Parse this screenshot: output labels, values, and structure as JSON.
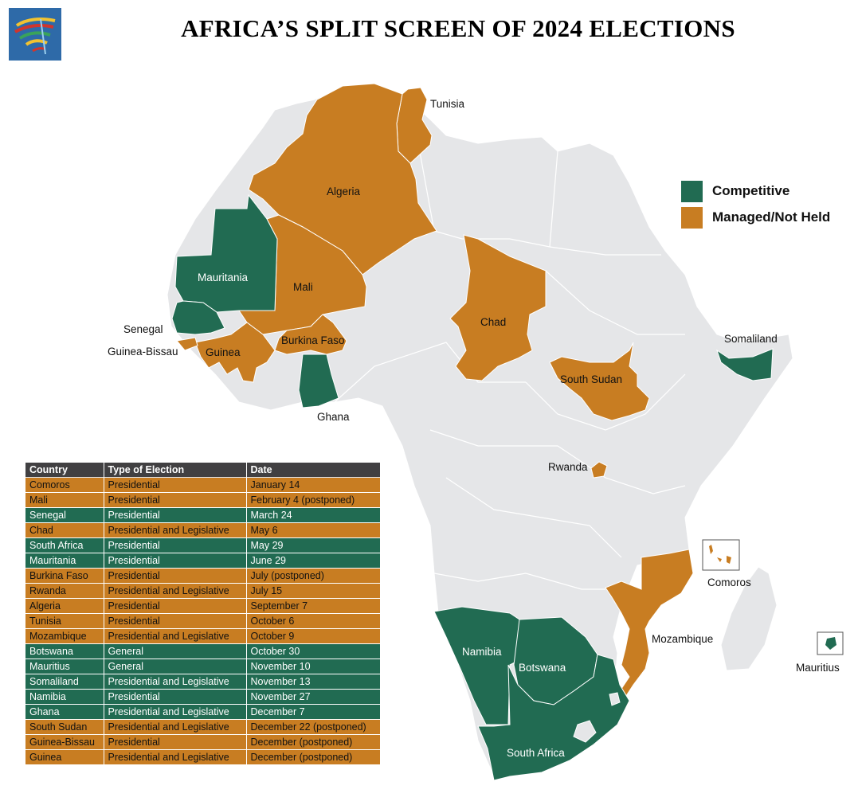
{
  "title": "AFRICA’S SPLIT SCREEN OF 2024 ELECTIONS",
  "colors": {
    "competitive": "#216b52",
    "managed": "#c87d22",
    "land": "#e5e6e8",
    "table_header": "#414042"
  },
  "legend": {
    "competitive": "Competitive",
    "managed": "Managed/Not Held"
  },
  "map_labels": {
    "tunisia": "Tunisia",
    "algeria": "Algeria",
    "mauritania": "Mauritania",
    "mali": "Mali",
    "senegal": "Senegal",
    "guinea_bissau": "Guinea-Bissau",
    "guinea": "Guinea",
    "burkina_faso": "Burkina Faso",
    "ghana": "Ghana",
    "chad": "Chad",
    "south_sudan": "South Sudan",
    "somaliland": "Somaliland",
    "rwanda": "Rwanda",
    "comoros": "Comoros",
    "mozambique": "Mozambique",
    "mauritius": "Mauritius",
    "namibia": "Namibia",
    "botswana": "Botswana",
    "south_africa": "South Africa"
  },
  "table": {
    "headers": [
      "Country",
      "Type of Election",
      "Date"
    ],
    "rows": [
      {
        "country": "Comoros",
        "type": "Presidential",
        "date": "January 14",
        "status": "managed"
      },
      {
        "country": "Mali",
        "type": "Presidential",
        "date": "February 4 (postponed)",
        "status": "managed"
      },
      {
        "country": "Senegal",
        "type": "Presidential",
        "date": "March 24",
        "status": "competitive"
      },
      {
        "country": "Chad",
        "type": "Presidential and Legislative",
        "date": "May 6",
        "status": "managed"
      },
      {
        "country": "South Africa",
        "type": "Presidential",
        "date": "May 29",
        "status": "competitive"
      },
      {
        "country": "Mauritania",
        "type": "Presidential",
        "date": "June 29",
        "status": "competitive"
      },
      {
        "country": "Burkina Faso",
        "type": "Presidential",
        "date": "July (postponed)",
        "status": "managed"
      },
      {
        "country": "Rwanda",
        "type": "Presidential and Legislative",
        "date": "July 15",
        "status": "managed"
      },
      {
        "country": "Algeria",
        "type": "Presidential",
        "date": "September 7",
        "status": "managed"
      },
      {
        "country": "Tunisia",
        "type": "Presidential",
        "date": "October 6",
        "status": "managed"
      },
      {
        "country": "Mozambique",
        "type": "Presidential and Legislative",
        "date": "October 9",
        "status": "managed"
      },
      {
        "country": "Botswana",
        "type": "General",
        "date": "October 30",
        "status": "competitive"
      },
      {
        "country": "Mauritius",
        "type": "General",
        "date": "November 10",
        "status": "competitive"
      },
      {
        "country": "Somaliland",
        "type": "Presidential and Legislative",
        "date": "November 13",
        "status": "competitive"
      },
      {
        "country": "Namibia",
        "type": "Presidential",
        "date": "November 27",
        "status": "competitive"
      },
      {
        "country": "Ghana",
        "type": "Presidential and Legislative",
        "date": "December 7",
        "status": "competitive"
      },
      {
        "country": "South Sudan",
        "type": "Presidential and Legislative",
        "date": "December 22 (postponed)",
        "status": "managed"
      },
      {
        "country": "Guinea-Bissau",
        "type": "Presidential",
        "date": "December (postponed)",
        "status": "managed"
      },
      {
        "country": "Guinea",
        "type": "Presidential and Legislative",
        "date": "December (postponed)",
        "status": "managed"
      }
    ]
  }
}
